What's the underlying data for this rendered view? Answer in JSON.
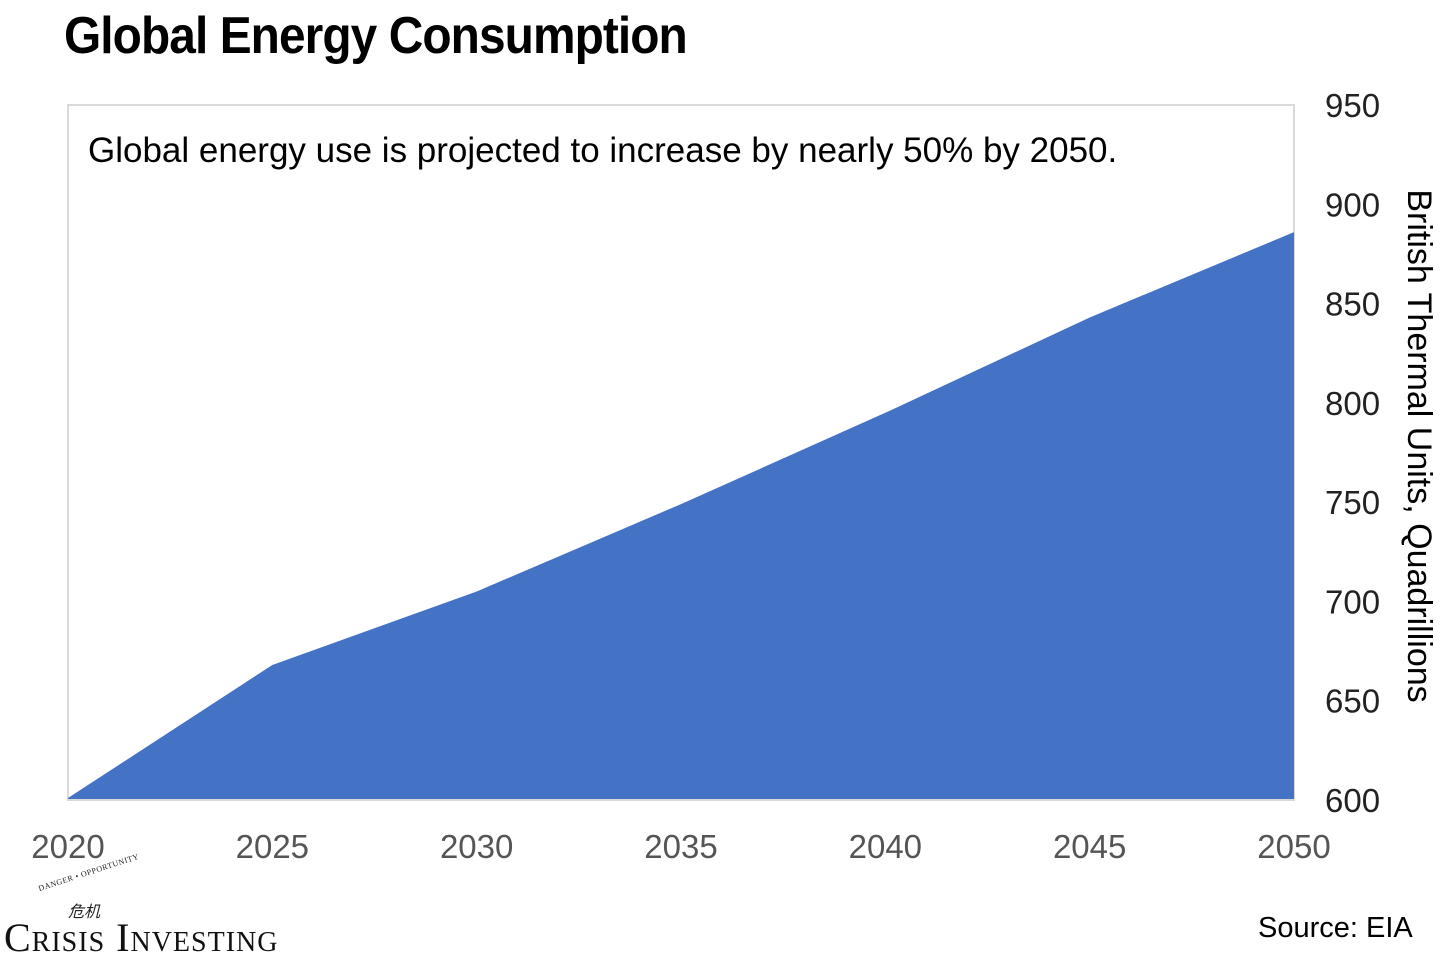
{
  "title": "Global Energy Consumption",
  "source": "Source: EIA",
  "logo": {
    "tagline": "DANGER • OPPORTUNITY",
    "glyph": "危机",
    "name": "Crisis Investing"
  },
  "colors": {
    "area": "#4472C4",
    "frame": "#D9D9D9"
  },
  "chart_data": {
    "type": "area",
    "annotation": "Global energy use is projected to increase by nearly 50% by 2050.",
    "x": [
      2020,
      2025,
      2030,
      2035,
      2040,
      2045,
      2050
    ],
    "values": [
      601,
      668,
      705,
      749,
      795,
      843,
      886
    ],
    "x_ticks": [
      "2020",
      "2025",
      "2030",
      "2035",
      "2040",
      "2045",
      "2050"
    ],
    "y_ticks": [
      "600",
      "650",
      "700",
      "750",
      "800",
      "850",
      "900",
      "950"
    ],
    "ylabel": "British Thermal Units, Quadrillions",
    "ylim": [
      600,
      950
    ],
    "xlim": [
      2020,
      2050
    ],
    "y_axis_side": "right",
    "grid": false,
    "legend": "none"
  }
}
